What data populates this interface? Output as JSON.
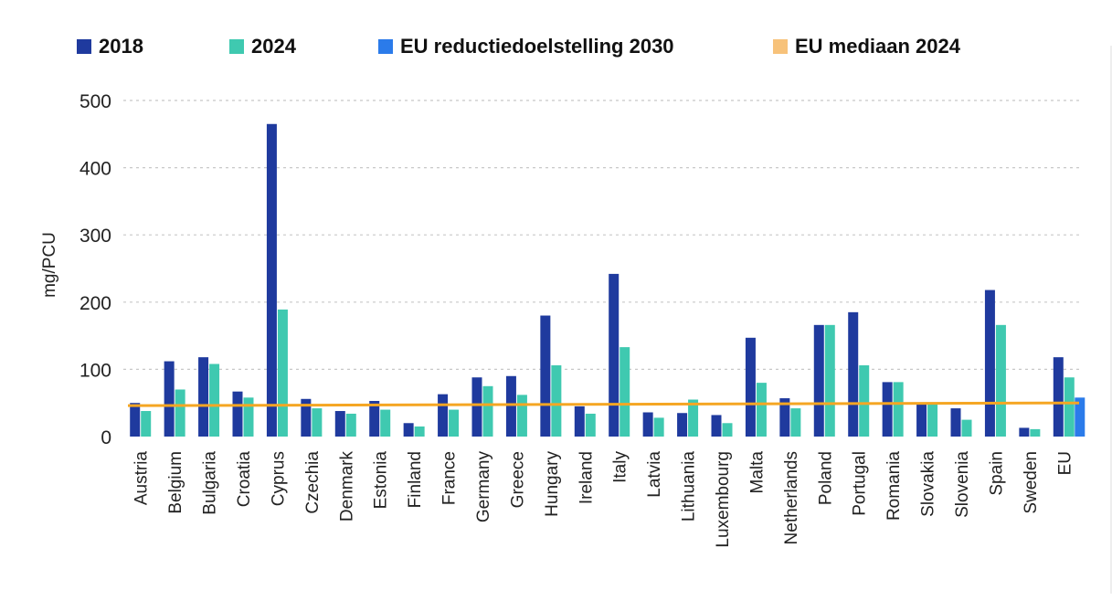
{
  "chart_data": {
    "type": "bar",
    "ylabel": "mg/PCU",
    "xlabel": "",
    "ylim": [
      0,
      500
    ],
    "yticks": [
      0,
      100,
      200,
      300,
      400,
      500
    ],
    "grid": true,
    "legend_position": "top",
    "categories": [
      "Austria",
      "Belgium",
      "Bulgaria",
      "Croatia",
      "Cyprus",
      "Czechia",
      "Denmark",
      "Estonia",
      "Finland",
      "France",
      "Germany",
      "Greece",
      "Hungary",
      "Ireland",
      "Italy",
      "Latvia",
      "Lithuania",
      "Luxembourg",
      "Malta",
      "Netherlands",
      "Poland",
      "Portugal",
      "Romania",
      "Slovakia",
      "Slovenia",
      "Spain",
      "Sweden",
      "EU"
    ],
    "series": [
      {
        "name": "2018",
        "color": "#1f3a9e",
        "values": [
          50,
          112,
          118,
          67,
          465,
          56,
          38,
          53,
          20,
          63,
          88,
          90,
          180,
          45,
          242,
          36,
          35,
          32,
          147,
          57,
          166,
          185,
          81,
          48,
          42,
          218,
          13,
          118
        ]
      },
      {
        "name": "2024",
        "color": "#3fc9b0",
        "values": [
          38,
          70,
          108,
          58,
          189,
          42,
          34,
          40,
          15,
          40,
          75,
          62,
          106,
          34,
          133,
          28,
          55,
          20,
          80,
          42,
          166,
          106,
          81,
          50,
          25,
          166,
          11,
          88
        ]
      },
      {
        "name": "EU reductiedoelstelling 2030",
        "color": "#2b7bea",
        "values": [
          null,
          null,
          null,
          null,
          null,
          null,
          null,
          null,
          null,
          null,
          null,
          null,
          null,
          null,
          null,
          null,
          null,
          null,
          null,
          null,
          null,
          null,
          null,
          null,
          null,
          null,
          null,
          58
        ]
      }
    ],
    "reference_line": {
      "name": "EU mediaan 2024",
      "color": "#f5a623",
      "legend_color": "#f7c27a",
      "value": 46,
      "value_end": 50
    }
  }
}
